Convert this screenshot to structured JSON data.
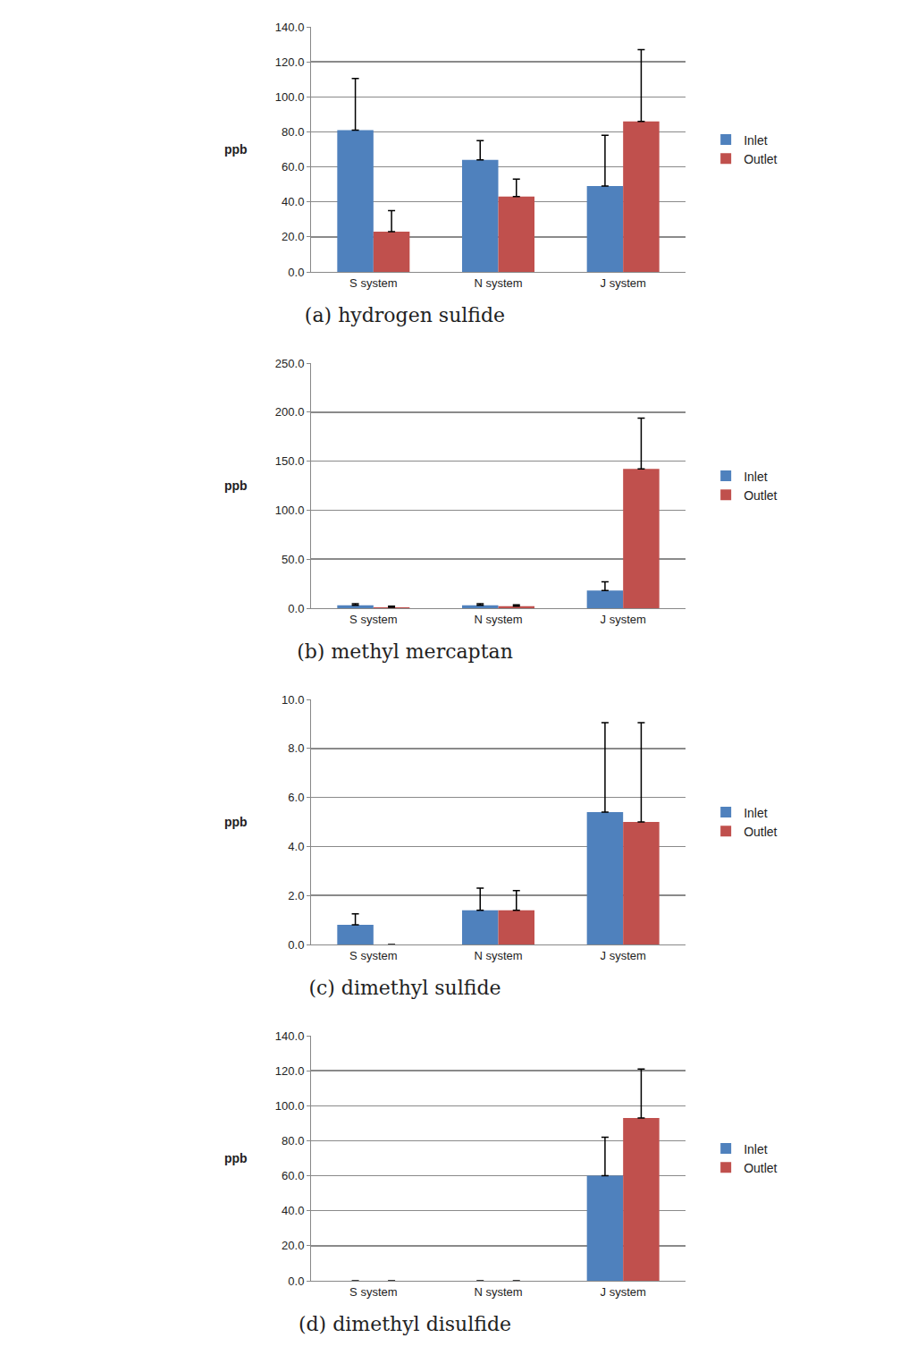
{
  "chart_data": [
    {
      "type": "bar",
      "title": "(a) hydrogen sulfide",
      "ylabel": "ppb",
      "categories": [
        "S system",
        "N system",
        "J system"
      ],
      "series": [
        {
          "name": "Inlet",
          "color": "#4f81bd",
          "values": [
            81,
            64,
            49
          ],
          "errors": [
            29.5,
            11,
            29
          ]
        },
        {
          "name": "Outlet",
          "color": "#c0504d",
          "values": [
            23,
            43,
            86
          ],
          "errors": [
            12,
            10,
            41
          ]
        }
      ],
      "ylim": [
        0,
        140
      ],
      "yticks": [
        {
          "value": 0,
          "label": "0.0"
        },
        {
          "value": 20,
          "label": "20.0"
        },
        {
          "value": 40,
          "label": "40.0"
        },
        {
          "value": 60,
          "label": "60.0"
        },
        {
          "value": 80,
          "label": "80.0"
        },
        {
          "value": 100,
          "label": "100.0"
        },
        {
          "value": 120,
          "label": "120.0"
        },
        {
          "value": 140,
          "label": "140.0"
        }
      ],
      "grid": true,
      "legend": "right"
    },
    {
      "type": "bar",
      "title": "(b) methyl mercaptan",
      "ylabel": "ppb",
      "categories": [
        "S system",
        "N system",
        "J system"
      ],
      "series": [
        {
          "name": "Inlet",
          "color": "#4f81bd",
          "values": [
            3,
            3,
            18
          ],
          "errors": [
            1.5,
            1.5,
            9
          ]
        },
        {
          "name": "Outlet",
          "color": "#c0504d",
          "values": [
            1,
            2,
            142
          ],
          "errors": [
            1,
            1.5,
            52
          ]
        }
      ],
      "ylim": [
        0,
        250
      ],
      "yticks": [
        {
          "value": 0,
          "label": "0.0"
        },
        {
          "value": 50,
          "label": "50.0"
        },
        {
          "value": 100,
          "label": "100.0"
        },
        {
          "value": 150,
          "label": "150.0"
        },
        {
          "value": 200,
          "label": "200.0"
        },
        {
          "value": 250,
          "label": "250.0"
        }
      ],
      "grid": true,
      "legend": "right"
    },
    {
      "type": "bar",
      "title": "(c) dimethyl sulfide",
      "ylabel": "ppb",
      "categories": [
        "S system",
        "N system",
        "J system"
      ],
      "series": [
        {
          "name": "Inlet",
          "color": "#4f81bd",
          "values": [
            0.8,
            1.4,
            5.4
          ],
          "errors": [
            0.45,
            0.9,
            3.65
          ]
        },
        {
          "name": "Outlet",
          "color": "#c0504d",
          "values": [
            0,
            1.4,
            5.0
          ],
          "errors": [
            0,
            0.8,
            4.05
          ]
        }
      ],
      "ylim": [
        0,
        10
      ],
      "yticks": [
        {
          "value": 0,
          "label": "0.0"
        },
        {
          "value": 2,
          "label": "2.0"
        },
        {
          "value": 4,
          "label": "4.0"
        },
        {
          "value": 6,
          "label": "6.0"
        },
        {
          "value": 8,
          "label": "8.0"
        },
        {
          "value": 10,
          "label": "10.0"
        }
      ],
      "grid": true,
      "legend": "right"
    },
    {
      "type": "bar",
      "title": "(d) dimethyl disulfide",
      "ylabel": "ppb",
      "categories": [
        "S system",
        "N system",
        "J system"
      ],
      "series": [
        {
          "name": "Inlet",
          "color": "#4f81bd",
          "values": [
            0,
            0,
            60
          ],
          "errors": [
            0,
            0,
            22
          ]
        },
        {
          "name": "Outlet",
          "color": "#c0504d",
          "values": [
            0,
            0,
            93
          ],
          "errors": [
            0,
            0,
            28
          ]
        }
      ],
      "ylim": [
        0,
        140
      ],
      "yticks": [
        {
          "value": 0,
          "label": "0.0"
        },
        {
          "value": 20,
          "label": "20.0"
        },
        {
          "value": 40,
          "label": "40.0"
        },
        {
          "value": 60,
          "label": "60.0"
        },
        {
          "value": 80,
          "label": "80.0"
        },
        {
          "value": 100,
          "label": "100.0"
        },
        {
          "value": 120,
          "label": "120.0"
        },
        {
          "value": 140,
          "label": "140.0"
        }
      ],
      "grid": true,
      "legend": "right"
    }
  ]
}
